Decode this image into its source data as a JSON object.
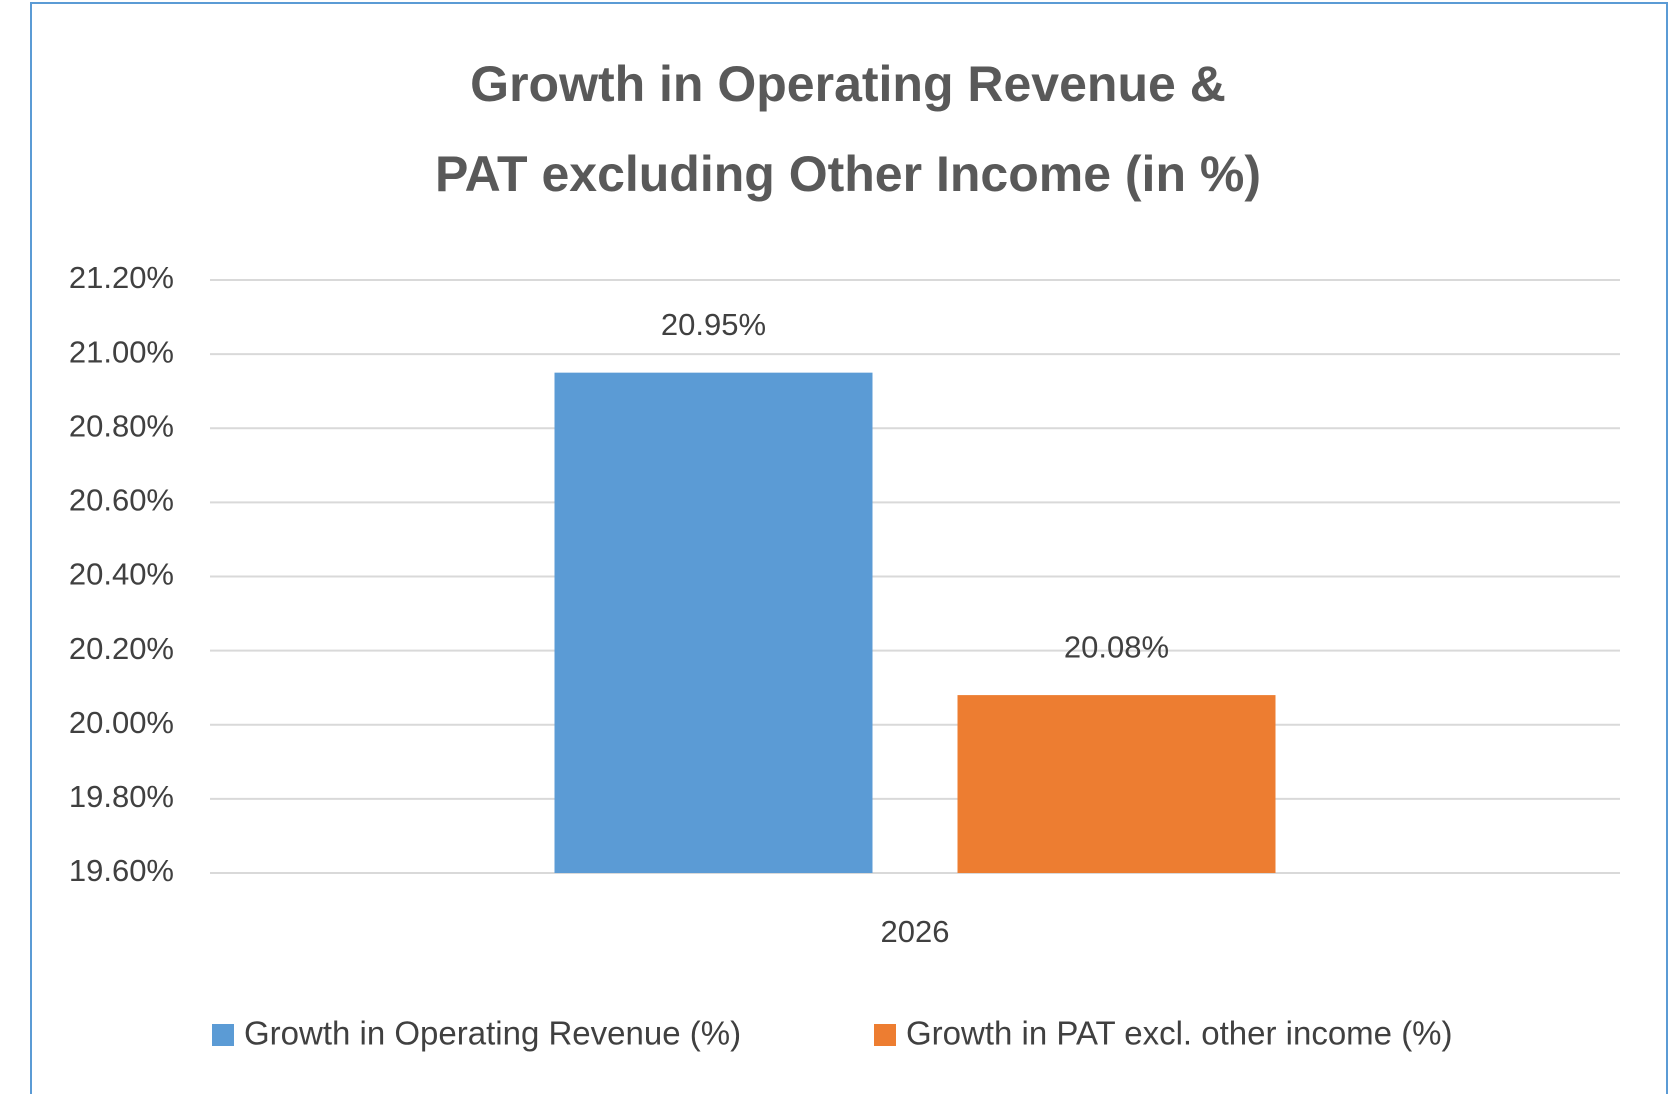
{
  "chart_data": {
    "type": "bar",
    "title": [
      "Growth in Operating Revenue &",
      "PAT excluding Other Income (in %)"
    ],
    "categories": [
      "2026"
    ],
    "series": [
      {
        "name": "Growth in Operating Revenue (%)",
        "color": "#5b9bd5",
        "values": [
          20.95
        ],
        "value_labels": [
          "20.95%"
        ]
      },
      {
        "name": "Growth in PAT excl. other income (%)",
        "color": "#ed7d31",
        "values": [
          20.08
        ],
        "value_labels": [
          "20.08%"
        ]
      }
    ],
    "ylim": [
      19.6,
      21.2
    ],
    "yticks": [
      {
        "value": 19.6,
        "label": "19.60%"
      },
      {
        "value": 19.8,
        "label": "19.80%"
      },
      {
        "value": 20.0,
        "label": "20.00%"
      },
      {
        "value": 20.2,
        "label": "20.20%"
      },
      {
        "value": 20.4,
        "label": "20.40%"
      },
      {
        "value": 20.6,
        "label": "20.60%"
      },
      {
        "value": 20.8,
        "label": "20.80%"
      },
      {
        "value": 21.0,
        "label": "21.00%"
      },
      {
        "value": 21.2,
        "label": "21.20%"
      }
    ],
    "grid": true,
    "legend": "bottom"
  }
}
